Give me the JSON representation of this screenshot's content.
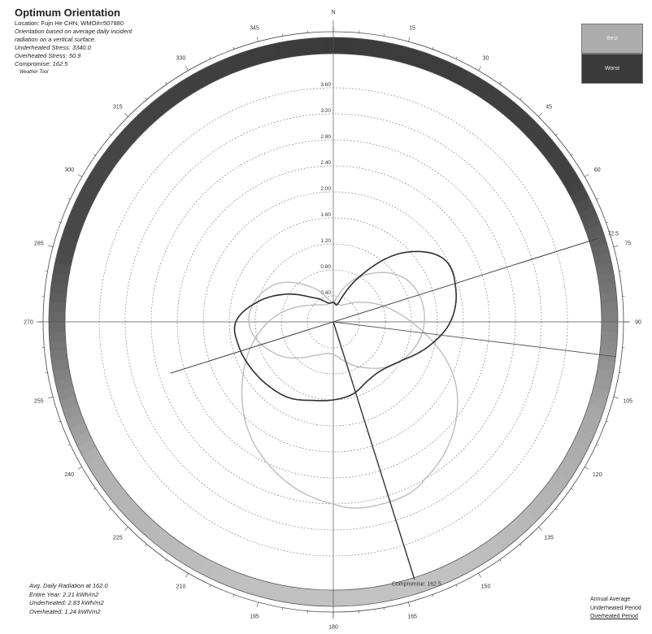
{
  "header": {
    "title": "Optimum Orientation",
    "location": "Location: Fujn He CHN, WMO#=507880",
    "description_line1": "Orientation based on average daily incident",
    "description_line2": "radiation on a vertical surface.",
    "underheated_stress": "Underheated Stress: 3340.0",
    "overheated_stress": "Overheated Stress: 50.9",
    "compromise": "Compromise: 162.5",
    "tool": "Weather Tool"
  },
  "legend": {
    "best": "Best",
    "worst": "Worst"
  },
  "footer": {
    "avg_line": "Avg. Daily Radiation at 162.0",
    "entire_year": "Entire Year: 2.21 kWh/m2",
    "underheated": "Underheated: 2.83 kWh/m2",
    "overheated": "Overheated: 1.24 kWh/m2"
  },
  "periods": {
    "annual": "Annual Average",
    "underheated": "Underheated Period",
    "overheated": "Overheated Period"
  },
  "compromise_label": "Compromise: 162.5",
  "colors": {
    "ring_dark": "#3a3a3a",
    "ring_light": "#d2d2d2",
    "annual_curve": "#2e2e2e",
    "period_curves": "#bdbdbd",
    "grid": "#777777"
  },
  "chart_data": {
    "type": "polar",
    "title": "Optimum Orientation",
    "north_label": "N",
    "angle_ticks": [
      0,
      15,
      30,
      45,
      60,
      75,
      90,
      105,
      120,
      135,
      150,
      165,
      180,
      195,
      210,
      225,
      240,
      255,
      270,
      285,
      300,
      315,
      330,
      345
    ],
    "radial_ticks": [
      0.4,
      0.8,
      1.2,
      1.6,
      2.0,
      2.4,
      2.8,
      3.2,
      3.6
    ],
    "r_max": 4.0,
    "marked_angles": {
      "compromise": 162.5,
      "best_marker": 72.5
    },
    "ring_gradient": [
      {
        "angle": 0,
        "level": 1.0
      },
      {
        "angle": 60,
        "level": 0.95
      },
      {
        "angle": 80,
        "level": 0.65
      },
      {
        "angle": 110,
        "level": 0.28
      },
      {
        "angle": 150,
        "level": 0.12
      },
      {
        "angle": 165,
        "level": 0.1
      },
      {
        "angle": 200,
        "level": 0.12
      },
      {
        "angle": 240,
        "level": 0.22
      },
      {
        "angle": 260,
        "level": 0.55
      },
      {
        "angle": 285,
        "level": 0.9
      },
      {
        "angle": 360,
        "level": 1.0
      }
    ],
    "series": [
      {
        "name": "Annual Average",
        "points": [
          [
            0,
            0.3
          ],
          [
            15,
            0.3
          ],
          [
            30,
            0.8
          ],
          [
            45,
            1.5
          ],
          [
            60,
            1.95
          ],
          [
            75,
            1.95
          ],
          [
            90,
            1.8
          ],
          [
            105,
            1.5
          ],
          [
            120,
            1.2
          ],
          [
            135,
            1.05
          ],
          [
            150,
            1.05
          ],
          [
            165,
            1.15
          ],
          [
            180,
            1.2
          ],
          [
            195,
            1.25
          ],
          [
            210,
            1.35
          ],
          [
            225,
            1.4
          ],
          [
            240,
            1.45
          ],
          [
            255,
            1.5
          ],
          [
            270,
            1.5
          ],
          [
            285,
            1.2
          ],
          [
            300,
            0.85
          ],
          [
            315,
            0.55
          ],
          [
            330,
            0.4
          ],
          [
            345,
            0.3
          ]
        ]
      },
      {
        "name": "Underheated Period",
        "points": [
          [
            0,
            0.3
          ],
          [
            30,
            0.3
          ],
          [
            60,
            0.6
          ],
          [
            90,
            1.2
          ],
          [
            120,
            2.2
          ],
          [
            150,
            2.8
          ],
          [
            165,
            2.9
          ],
          [
            180,
            2.8
          ],
          [
            210,
            2.3
          ],
          [
            240,
            1.6
          ],
          [
            270,
            1.0
          ],
          [
            300,
            0.5
          ],
          [
            330,
            0.3
          ]
        ]
      },
      {
        "name": "Overheated Period",
        "points": [
          [
            0,
            0.3
          ],
          [
            30,
            0.8
          ],
          [
            60,
            1.3
          ],
          [
            90,
            1.4
          ],
          [
            120,
            1.2
          ],
          [
            150,
            0.8
          ],
          [
            180,
            0.5
          ],
          [
            210,
            0.6
          ],
          [
            240,
            1.0
          ],
          [
            270,
            1.3
          ],
          [
            300,
            1.1
          ],
          [
            330,
            0.6
          ]
        ]
      }
    ]
  }
}
